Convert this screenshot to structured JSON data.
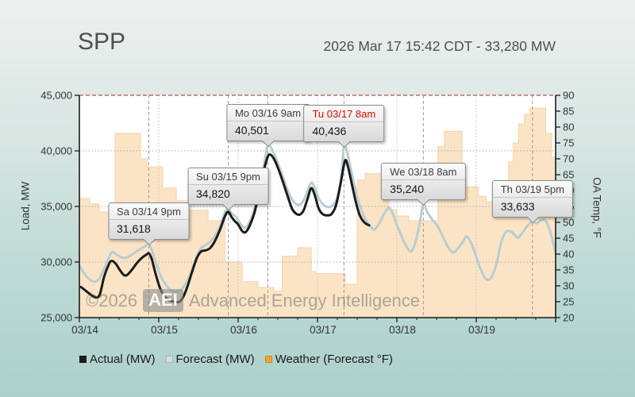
{
  "header": {
    "title": "SPP",
    "timestamp": "2026 Mar 17 15:42 CDT - 33,280 MW"
  },
  "watermark": {
    "copyright": "©2026",
    "badge": "AEI",
    "company": "Advanced Energy Intelligence"
  },
  "chart_data": {
    "type": "line",
    "title": "SPP",
    "hours_span": 144,
    "x_labels": [
      "03/14",
      "03/15",
      "03/16",
      "03/17",
      "03/18",
      "03/19"
    ],
    "load_axis": {
      "label": "Load, MW",
      "min": 25000,
      "max": 45000,
      "tick_step": 5000
    },
    "temp_axis": {
      "label": "OA Temp, °F",
      "min": 20,
      "max": 90,
      "tick_step": 5
    },
    "grid": {
      "h_lines_mw": [
        30000,
        35000,
        40000
      ],
      "top_line_mw": 45000,
      "day_lines_hours": [
        24,
        48,
        72,
        96,
        120
      ]
    },
    "legend": [
      {
        "label": "Actual (MW)",
        "swatch": "#1c1c1c"
      },
      {
        "label": "Forecast (MW)",
        "swatch": "#d7dddd"
      },
      {
        "label": "Weather (Forecast °F)",
        "swatch": "#f5a237"
      }
    ],
    "colors": {
      "actual": "#1c1c1c",
      "forecast": "#b9cdd1",
      "weather_fill": "#fbe4c5",
      "weather_edge": "#f3d4ab",
      "grid": "#b2b2b2",
      "day_grid": "#c6c6c6",
      "marker": "#9a9a9a",
      "top_line": "#b2524d",
      "axis": "#1a1a1a"
    },
    "series": [
      {
        "name": "Actual (MW)",
        "axis": "load",
        "style": "line",
        "points": [
          [
            0.5,
            27750
          ],
          [
            2,
            27400
          ],
          [
            3.5,
            27050
          ],
          [
            5,
            26800
          ],
          [
            6.2,
            27100
          ],
          [
            7.5,
            28700
          ],
          [
            9,
            29850
          ],
          [
            9.8,
            30100
          ],
          [
            11,
            29850
          ],
          [
            12.3,
            29250
          ],
          [
            13.5,
            28820
          ],
          [
            14.5,
            28850
          ],
          [
            16,
            29350
          ],
          [
            17.5,
            29950
          ],
          [
            19,
            30400
          ],
          [
            20.2,
            30650
          ],
          [
            21,
            30780
          ],
          [
            21.9,
            30250
          ],
          [
            23,
            29000
          ],
          [
            24.2,
            27800
          ],
          [
            25.5,
            27000
          ],
          [
            27,
            26600
          ],
          [
            28.5,
            26430
          ],
          [
            30,
            26400
          ],
          [
            31.2,
            26750
          ],
          [
            32.5,
            27650
          ],
          [
            34,
            29050
          ],
          [
            35.5,
            30350
          ],
          [
            36.8,
            30950
          ],
          [
            38.2,
            31050
          ],
          [
            39.5,
            31250
          ],
          [
            41,
            31900
          ],
          [
            42.5,
            32900
          ],
          [
            44,
            34100
          ],
          [
            45,
            34520
          ],
          [
            46,
            34050
          ],
          [
            47,
            33680
          ],
          [
            48,
            33380
          ],
          [
            49.2,
            32800
          ],
          [
            50.2,
            32680
          ],
          [
            51.3,
            33150
          ],
          [
            52.8,
            34300
          ],
          [
            54.2,
            36000
          ],
          [
            55.6,
            38000
          ],
          [
            56.8,
            39350
          ],
          [
            57.6,
            39680
          ],
          [
            58.7,
            39350
          ],
          [
            60,
            38500
          ],
          [
            61.5,
            37250
          ],
          [
            63,
            35900
          ],
          [
            64.3,
            34800
          ],
          [
            65.4,
            34380
          ],
          [
            66.6,
            34260
          ],
          [
            67.8,
            34650
          ],
          [
            69,
            35700
          ],
          [
            70.1,
            36640
          ],
          [
            71.2,
            36000
          ],
          [
            72.3,
            34850
          ],
          [
            73.5,
            34320
          ],
          [
            74.8,
            34200
          ],
          [
            76.2,
            34300
          ],
          [
            77.6,
            35100
          ],
          [
            79,
            37100
          ],
          [
            80.3,
            39100
          ],
          [
            81.2,
            38600
          ],
          [
            82.4,
            37000
          ],
          [
            83.6,
            35400
          ],
          [
            84.8,
            34200
          ],
          [
            86.2,
            33550
          ],
          [
            87.6,
            33300
          ]
        ]
      },
      {
        "name": "Forecast (MW)",
        "axis": "load",
        "style": "line",
        "points": [
          [
            0,
            29700
          ],
          [
            1.5,
            28950
          ],
          [
            3,
            28450
          ],
          [
            4.6,
            28220
          ],
          [
            6,
            28500
          ],
          [
            7.5,
            29400
          ],
          [
            9,
            30450
          ],
          [
            9.9,
            30900
          ],
          [
            11.2,
            30680
          ],
          [
            12.6,
            30430
          ],
          [
            14,
            30380
          ],
          [
            15.6,
            30600
          ],
          [
            17,
            30900
          ],
          [
            18.6,
            31200
          ],
          [
            20,
            31450
          ],
          [
            21,
            31618
          ],
          [
            22,
            31000
          ],
          [
            23.2,
            29900
          ],
          [
            24.5,
            28800
          ],
          [
            26,
            28000
          ],
          [
            27.6,
            27500
          ],
          [
            29.2,
            27320
          ],
          [
            30.6,
            27450
          ],
          [
            32,
            28000
          ],
          [
            33.5,
            28900
          ],
          [
            35,
            30050
          ],
          [
            36.5,
            31150
          ],
          [
            38,
            31500
          ],
          [
            39.5,
            31800
          ],
          [
            41,
            32350
          ],
          [
            42.6,
            33300
          ],
          [
            44,
            34450
          ],
          [
            45,
            34820
          ],
          [
            46.1,
            34350
          ],
          [
            47.2,
            34100
          ],
          [
            48.6,
            33500
          ],
          [
            49.8,
            33080
          ],
          [
            51,
            33350
          ],
          [
            52.5,
            34350
          ],
          [
            54,
            36100
          ],
          [
            55.5,
            38200
          ],
          [
            56.5,
            39900
          ],
          [
            57,
            40501
          ],
          [
            58,
            40250
          ],
          [
            59.5,
            39300
          ],
          [
            61,
            38100
          ],
          [
            62.5,
            36850
          ],
          [
            64,
            35750
          ],
          [
            65.4,
            35250
          ],
          [
            66.6,
            35150
          ],
          [
            67.8,
            35550
          ],
          [
            69,
            36400
          ],
          [
            70.1,
            37150
          ],
          [
            71.2,
            36650
          ],
          [
            72.4,
            35700
          ],
          [
            73.8,
            35150
          ],
          [
            75.2,
            34950
          ],
          [
            76.6,
            35100
          ],
          [
            78,
            35800
          ],
          [
            79.2,
            37700
          ],
          [
            80,
            40436
          ],
          [
            81,
            39850
          ],
          [
            82.5,
            37800
          ],
          [
            84,
            35900
          ],
          [
            85.5,
            34500
          ],
          [
            87,
            33600
          ],
          [
            88.4,
            33050
          ],
          [
            89.2,
            32920
          ],
          [
            90.6,
            33450
          ],
          [
            92,
            34250
          ],
          [
            93.6,
            34870
          ],
          [
            94.9,
            34250
          ],
          [
            96,
            33350
          ],
          [
            97.5,
            32250
          ],
          [
            99,
            31350
          ],
          [
            100.3,
            30950
          ],
          [
            101.6,
            31750
          ],
          [
            102.9,
            33500
          ],
          [
            104,
            35240
          ],
          [
            105.1,
            34550
          ],
          [
            106.6,
            33850
          ],
          [
            108.2,
            33300
          ],
          [
            109.8,
            32350
          ],
          [
            111.4,
            31400
          ],
          [
            112.9,
            30850
          ],
          [
            114.2,
            31150
          ],
          [
            115.8,
            31750
          ],
          [
            117.1,
            32300
          ],
          [
            118.6,
            31600
          ],
          [
            120,
            30450
          ],
          [
            121.6,
            29150
          ],
          [
            123.2,
            28400
          ],
          [
            124.6,
            28650
          ],
          [
            126.2,
            29900
          ],
          [
            127.6,
            31850
          ],
          [
            129,
            32720
          ],
          [
            130.4,
            32760
          ],
          [
            131.6,
            32450
          ],
          [
            132.7,
            32180
          ],
          [
            134.2,
            32750
          ],
          [
            135.6,
            33300
          ],
          [
            137,
            33640
          ],
          [
            138.2,
            33470
          ],
          [
            139.4,
            33720
          ],
          [
            140.9,
            33760
          ],
          [
            142.2,
            32900
          ],
          [
            143.2,
            31800
          ],
          [
            144,
            30800
          ]
        ]
      },
      {
        "name": "Weather (Forecast °F)",
        "axis": "temp",
        "style": "step-area",
        "points": [
          [
            0,
            57.5
          ],
          [
            3,
            55.8
          ],
          [
            6,
            53.3
          ],
          [
            9,
            52.2
          ],
          [
            10.8,
            78
          ],
          [
            18.5,
            70
          ],
          [
            20.5,
            67.5
          ],
          [
            25.2,
            60.8
          ],
          [
            29.3,
            56.8
          ],
          [
            33.1,
            53.8
          ],
          [
            38.9,
            50.5
          ],
          [
            44,
            37.5
          ],
          [
            49.2,
            31.3
          ],
          [
            54,
            29.5
          ],
          [
            58.8,
            28.3
          ],
          [
            61.3,
            39.3
          ],
          [
            66,
            42
          ],
          [
            70.1,
            34.5
          ],
          [
            71.5,
            33.8
          ],
          [
            80.4,
            30.5
          ],
          [
            84,
            63.3
          ],
          [
            86.4,
            65.3
          ],
          [
            91.7,
            58.8
          ],
          [
            93.6,
            54
          ],
          [
            96,
            52
          ],
          [
            99.6,
            50.5
          ],
          [
            108.4,
            73.8
          ],
          [
            110.4,
            78.7
          ],
          [
            115.7,
            63.2
          ],
          [
            116.8,
            61.2
          ],
          [
            120.7,
            58.2
          ],
          [
            123,
            56.5
          ],
          [
            125.8,
            55
          ],
          [
            127.9,
            54.5
          ],
          [
            128.6,
            62
          ],
          [
            129.8,
            69
          ],
          [
            131.2,
            75
          ],
          [
            132.8,
            81
          ],
          [
            134.6,
            84
          ],
          [
            136.2,
            86
          ],
          [
            141,
            78
          ],
          [
            142.8,
            70.5
          ],
          [
            144,
            70.5
          ]
        ]
      }
    ],
    "callouts": [
      {
        "title": "Sa 03/14 9pm",
        "value": "31,618",
        "hour": 21,
        "mw": 31618,
        "highlight": false
      },
      {
        "title": "Su 03/15 9pm",
        "value": "34,820",
        "hour": 45,
        "mw": 34820,
        "highlight": false
      },
      {
        "title": "Mo 03/16 9am",
        "value": "40,501",
        "hour": 57,
        "mw": 40501,
        "highlight": false
      },
      {
        "title": "Tu 03/17 8am",
        "value": "40,436",
        "hour": 80,
        "mw": 40436,
        "highlight": true
      },
      {
        "title": "We 03/18 8am",
        "value": "35,240",
        "hour": 104,
        "mw": 35240,
        "highlight": false
      },
      {
        "title": "Th 03/19 5pm",
        "value": "33,633",
        "hour": 137,
        "mw": 33633,
        "highlight": false
      }
    ]
  }
}
